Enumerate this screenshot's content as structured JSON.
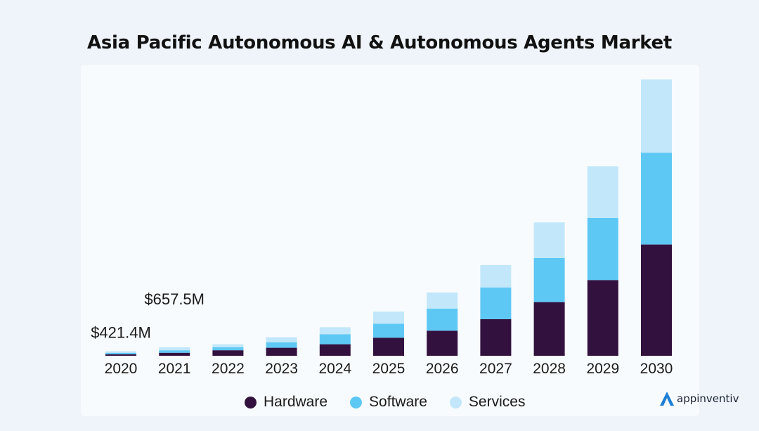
{
  "chart_data": {
    "type": "bar",
    "stacked": true,
    "title": "Asia Pacific Autonomous AI & Autonomous Agents Market",
    "categories": [
      "2020",
      "2021",
      "2022",
      "2023",
      "2024",
      "2025",
      "2026",
      "2027",
      "2028",
      "2029",
      "2030"
    ],
    "series": [
      {
        "name": "Hardware",
        "color": "#33113f",
        "values": [
          0.3,
          0.6,
          1.1,
          1.6,
          2.3,
          3.6,
          5.0,
          7.3,
          10.7,
          15.1,
          22.2
        ]
      },
      {
        "name": "Software",
        "color": "#5ec8f5",
        "values": [
          0.3,
          0.5,
          0.6,
          1.1,
          2.0,
          2.8,
          4.4,
          6.3,
          8.8,
          12.4,
          18.3
        ]
      },
      {
        "name": "Services",
        "color": "#c2e7fa",
        "values": [
          0.3,
          0.6,
          0.6,
          1.0,
          1.4,
          2.4,
          3.2,
          4.5,
          7.1,
          10.3,
          14.6
        ]
      }
    ],
    "annotations": [
      {
        "category": "2020",
        "text": "$421.4M"
      },
      {
        "category": "2021",
        "text": "$657.5M"
      }
    ],
    "ylim": [
      0,
      56.5
    ],
    "xlabel": "",
    "ylabel": "",
    "grid": false,
    "legend_position": "bottom"
  },
  "brand": {
    "name": "appinventiv",
    "icon": "appinventiv-logo-icon",
    "color": "#1e7fd6"
  }
}
